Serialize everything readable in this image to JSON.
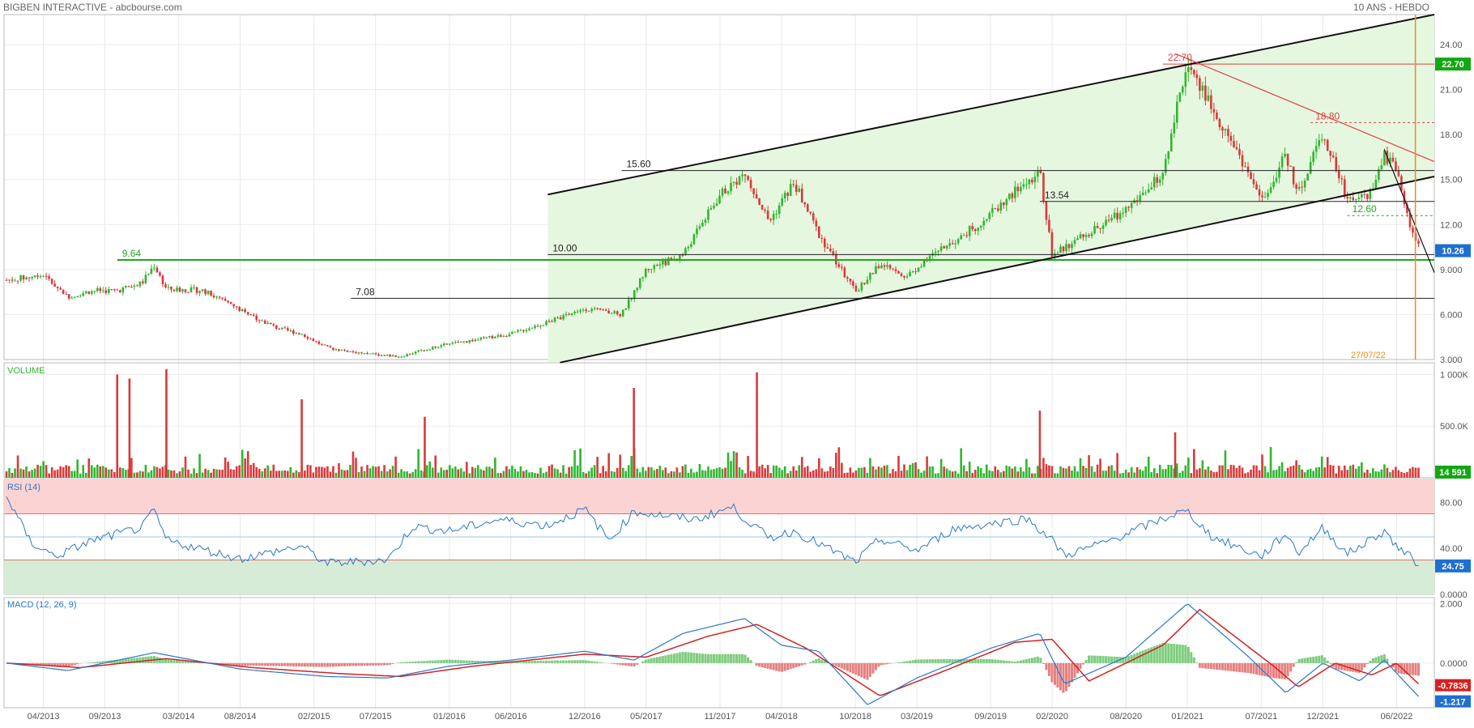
{
  "header": {
    "title": "BIGBEN INTERACTIVE - abcbourse.com",
    "period": "10 ANS - HEBDO"
  },
  "x_axis": {
    "labels": [
      "04/2013",
      "09/2013",
      "03/2014",
      "08/2014",
      "02/2015",
      "07/2015",
      "01/2016",
      "06/2016",
      "12/2016",
      "05/2017",
      "11/2017",
      "04/2018",
      "10/2018",
      "03/2019",
      "09/2019",
      "02/2020",
      "08/2020",
      "01/2021",
      "07/2021",
      "12/2021",
      "06/2022"
    ]
  },
  "colors": {
    "up": "#2fb62f",
    "down": "#d93a3a",
    "channel_fill": "#e6f7e0",
    "rsi_line": "#2a78c8",
    "macd_line": "#2a78c8",
    "signal_line": "#d62020",
    "orange_line": "#f08a1c"
  },
  "chart_data": [
    {
      "type": "candlestick",
      "panel": "price",
      "y_ticks": [
        "24.00",
        "21.00",
        "18.00",
        "15.00",
        "12.00",
        "9.000",
        "6.000",
        "3.000"
      ],
      "ylim": [
        3,
        26
      ],
      "x_range": [
        "01/2013",
        "09/2022"
      ],
      "close_path": [
        {
          "x": "01/2013",
          "y": 8.3
        },
        {
          "x": "04/2013",
          "y": 8.6
        },
        {
          "x": "06/2013",
          "y": 7.2
        },
        {
          "x": "08/2013",
          "y": 7.6
        },
        {
          "x": "10/2013",
          "y": 7.6
        },
        {
          "x": "12/2013",
          "y": 8.1
        },
        {
          "x": "01/2014",
          "y": 9.3
        },
        {
          "x": "02/2014",
          "y": 7.7
        },
        {
          "x": "05/2014",
          "y": 7.6
        },
        {
          "x": "08/2014",
          "y": 6.3
        },
        {
          "x": "11/2014",
          "y": 5.1
        },
        {
          "x": "01/2015",
          "y": 4.7
        },
        {
          "x": "03/2015",
          "y": 3.8
        },
        {
          "x": "06/2015",
          "y": 3.4
        },
        {
          "x": "09/2015",
          "y": 3.2
        },
        {
          "x": "12/2015",
          "y": 3.9
        },
        {
          "x": "03/2016",
          "y": 4.3
        },
        {
          "x": "06/2016",
          "y": 4.7
        },
        {
          "x": "09/2016",
          "y": 5.5
        },
        {
          "x": "12/2016",
          "y": 6.4
        },
        {
          "x": "03/2017",
          "y": 6.0
        },
        {
          "x": "05/2017",
          "y": 9.0
        },
        {
          "x": "08/2017",
          "y": 10.0
        },
        {
          "x": "11/2017",
          "y": 14.0
        },
        {
          "x": "01/2018",
          "y": 15.4
        },
        {
          "x": "03/2018",
          "y": 12.2
        },
        {
          "x": "05/2018",
          "y": 14.8
        },
        {
          "x": "07/2018",
          "y": 11.4
        },
        {
          "x": "10/2018",
          "y": 7.5
        },
        {
          "x": "12/2018",
          "y": 9.4
        },
        {
          "x": "02/2019",
          "y": 8.4
        },
        {
          "x": "05/2019",
          "y": 10.4
        },
        {
          "x": "08/2019",
          "y": 12.0
        },
        {
          "x": "11/2019",
          "y": 14.2
        },
        {
          "x": "01/2020",
          "y": 15.5
        },
        {
          "x": "02/2020",
          "y": 10.0
        },
        {
          "x": "05/2020",
          "y": 11.4
        },
        {
          "x": "08/2020",
          "y": 13.0
        },
        {
          "x": "11/2020",
          "y": 15.4
        },
        {
          "x": "12/2020",
          "y": 19.5
        },
        {
          "x": "01/2021",
          "y": 22.7
        },
        {
          "x": "03/2021",
          "y": 19.8
        },
        {
          "x": "05/2021",
          "y": 17.0
        },
        {
          "x": "07/2021",
          "y": 13.6
        },
        {
          "x": "09/2021",
          "y": 16.6
        },
        {
          "x": "10/2021",
          "y": 14.0
        },
        {
          "x": "12/2021",
          "y": 18.2
        },
        {
          "x": "02/2022",
          "y": 13.7
        },
        {
          "x": "04/2022",
          "y": 14.0
        },
        {
          "x": "05/2022",
          "y": 16.7
        },
        {
          "x": "06/2022",
          "y": 15.6
        },
        {
          "x": "07/2022",
          "y": 12.0
        },
        {
          "x": "08/2022",
          "y": 10.26
        }
      ],
      "levels": [
        {
          "label": "15.60",
          "value": 15.6,
          "color": "black"
        },
        {
          "label": "13.54",
          "value": 13.54,
          "color": "black"
        },
        {
          "label": "10.00",
          "value": 10.0,
          "color": "black"
        },
        {
          "label": "9.64",
          "value": 9.64,
          "color": "green"
        },
        {
          "label": "7.08",
          "value": 7.08,
          "color": "black"
        },
        {
          "label": "22.70",
          "value": 22.7,
          "color": "red"
        },
        {
          "label": "18.80",
          "value": 18.8,
          "color": "red"
        },
        {
          "label": "12.60",
          "value": 12.6,
          "color": "green"
        }
      ],
      "annotations": {
        "vertical_date": "27/07/22"
      },
      "last_value": "10.26",
      "high_value": "22.70"
    },
    {
      "type": "bar",
      "panel": "volume",
      "title": "VOLUME",
      "y_ticks": [
        "1 000K",
        "500.0K"
      ],
      "ylim": [
        0,
        1050000
      ],
      "peaks": [
        {
          "x": "10/2013",
          "y": 1000000
        },
        {
          "x": "11/2013",
          "y": 960000
        },
        {
          "x": "02/2014",
          "y": 1050000
        },
        {
          "x": "01/2015",
          "y": 760000
        },
        {
          "x": "11/2015",
          "y": 590000
        },
        {
          "x": "04/2017",
          "y": 870000
        },
        {
          "x": "02/2018",
          "y": 1020000
        },
        {
          "x": "01/2020",
          "y": 650000
        },
        {
          "x": "12/2020",
          "y": 440000
        }
      ],
      "last_value": "14 591"
    },
    {
      "type": "line",
      "panel": "rsi",
      "title": "RSI (14)",
      "y_ticks": [
        "80.00",
        "40.00",
        "0.0000"
      ],
      "ylim": [
        0,
        100
      ],
      "zones": {
        "overbought": 70,
        "oversold": 30,
        "midline": 50
      },
      "points": [
        {
          "x": "01/2013",
          "y": 85
        },
        {
          "x": "03/2013",
          "y": 45
        },
        {
          "x": "05/2013",
          "y": 33
        },
        {
          "x": "08/2013",
          "y": 47
        },
        {
          "x": "12/2013",
          "y": 58
        },
        {
          "x": "01/2014",
          "y": 73
        },
        {
          "x": "02/2014",
          "y": 47
        },
        {
          "x": "08/2014",
          "y": 31
        },
        {
          "x": "01/2015",
          "y": 42
        },
        {
          "x": "03/2015",
          "y": 27
        },
        {
          "x": "08/2015",
          "y": 30
        },
        {
          "x": "10/2015",
          "y": 59
        },
        {
          "x": "01/2016",
          "y": 55
        },
        {
          "x": "05/2016",
          "y": 65
        },
        {
          "x": "09/2016",
          "y": 60
        },
        {
          "x": "12/2016",
          "y": 74
        },
        {
          "x": "02/2017",
          "y": 47
        },
        {
          "x": "04/2017",
          "y": 72
        },
        {
          "x": "09/2017",
          "y": 65
        },
        {
          "x": "12/2017",
          "y": 76
        },
        {
          "x": "01/2018",
          "y": 66
        },
        {
          "x": "03/2018",
          "y": 49
        },
        {
          "x": "05/2018",
          "y": 55
        },
        {
          "x": "10/2018",
          "y": 28
        },
        {
          "x": "12/2018",
          "y": 48
        },
        {
          "x": "03/2019",
          "y": 38
        },
        {
          "x": "06/2019",
          "y": 57
        },
        {
          "x": "12/2019",
          "y": 66
        },
        {
          "x": "02/2020",
          "y": 47
        },
        {
          "x": "03/2020",
          "y": 34
        },
        {
          "x": "06/2020",
          "y": 44
        },
        {
          "x": "12/2020",
          "y": 70
        },
        {
          "x": "01/2021",
          "y": 72
        },
        {
          "x": "03/2021",
          "y": 50
        },
        {
          "x": "07/2021",
          "y": 33
        },
        {
          "x": "09/2021",
          "y": 53
        },
        {
          "x": "10/2021",
          "y": 36
        },
        {
          "x": "12/2021",
          "y": 58
        },
        {
          "x": "02/2022",
          "y": 35
        },
        {
          "x": "05/2022",
          "y": 55
        },
        {
          "x": "06/2022",
          "y": 42
        },
        {
          "x": "08/2022",
          "y": 24.75
        }
      ],
      "last_value": "24.75"
    },
    {
      "type": "line",
      "panel": "macd",
      "title": "MACD (12, 26, 9)",
      "y_ticks": [
        "2.000",
        "0.0000"
      ],
      "ylim": [
        -1.5,
        2.2
      ],
      "series": [
        {
          "name": "MACD",
          "points": [
            {
              "x": "01/2013",
              "y": 0.0
            },
            {
              "x": "06/2013",
              "y": -0.25
            },
            {
              "x": "01/2014",
              "y": 0.35
            },
            {
              "x": "08/2014",
              "y": -0.2
            },
            {
              "x": "03/2015",
              "y": -0.45
            },
            {
              "x": "08/2015",
              "y": -0.5
            },
            {
              "x": "01/2016",
              "y": -0.1
            },
            {
              "x": "06/2016",
              "y": 0.1
            },
            {
              "x": "12/2016",
              "y": 0.4
            },
            {
              "x": "04/2017",
              "y": 0.1
            },
            {
              "x": "08/2017",
              "y": 1.0
            },
            {
              "x": "01/2018",
              "y": 1.5
            },
            {
              "x": "04/2018",
              "y": 0.6
            },
            {
              "x": "07/2018",
              "y": 0.4
            },
            {
              "x": "11/2018",
              "y": -1.4
            },
            {
              "x": "03/2019",
              "y": -0.5
            },
            {
              "x": "09/2019",
              "y": 0.5
            },
            {
              "x": "01/2020",
              "y": 1.0
            },
            {
              "x": "03/2020",
              "y": -0.7
            },
            {
              "x": "08/2020",
              "y": 0.2
            },
            {
              "x": "01/2021",
              "y": 2.0
            },
            {
              "x": "06/2021",
              "y": 0.2
            },
            {
              "x": "09/2021",
              "y": -1.0
            },
            {
              "x": "12/2021",
              "y": 0.0
            },
            {
              "x": "03/2022",
              "y": -0.6
            },
            {
              "x": "05/2022",
              "y": 0.1
            },
            {
              "x": "08/2022",
              "y": -1.217
            }
          ]
        },
        {
          "name": "Signal",
          "points": [
            {
              "x": "01/2013",
              "y": 0.0
            },
            {
              "x": "07/2013",
              "y": -0.15
            },
            {
              "x": "02/2014",
              "y": 0.15
            },
            {
              "x": "09/2014",
              "y": -0.15
            },
            {
              "x": "04/2015",
              "y": -0.35
            },
            {
              "x": "09/2015",
              "y": -0.45
            },
            {
              "x": "03/2016",
              "y": -0.1
            },
            {
              "x": "12/2016",
              "y": 0.3
            },
            {
              "x": "05/2017",
              "y": 0.2
            },
            {
              "x": "10/2017",
              "y": 0.9
            },
            {
              "x": "02/2018",
              "y": 1.3
            },
            {
              "x": "06/2018",
              "y": 0.5
            },
            {
              "x": "12/2018",
              "y": -1.1
            },
            {
              "x": "05/2019",
              "y": -0.3
            },
            {
              "x": "11/2019",
              "y": 0.7
            },
            {
              "x": "02/2020",
              "y": 0.8
            },
            {
              "x": "05/2020",
              "y": -0.6
            },
            {
              "x": "11/2020",
              "y": 0.6
            },
            {
              "x": "02/2021",
              "y": 1.8
            },
            {
              "x": "08/2021",
              "y": -0.1
            },
            {
              "x": "10/2021",
              "y": -0.8
            },
            {
              "x": "01/2022",
              "y": 0.0
            },
            {
              "x": "04/2022",
              "y": -0.4
            },
            {
              "x": "06/2022",
              "y": 0.0
            },
            {
              "x": "08/2022",
              "y": -0.7836
            }
          ]
        }
      ],
      "last_values": [
        "-0.7836",
        "-1.217"
      ]
    }
  ]
}
